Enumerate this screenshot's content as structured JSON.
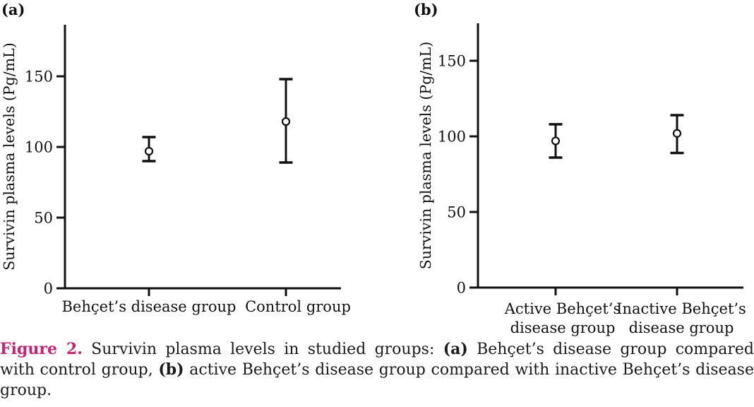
{
  "colors": {
    "background": "#ffffff",
    "ink": "#111111",
    "caption_text": "#1b1b1b",
    "figure_label_pink": "#c32370"
  },
  "chart_data": [
    {
      "type": "scatter",
      "subtype": "mean_with_error_bars",
      "panel_label": "(a)",
      "title": "",
      "xlabel": "",
      "ylabel": "Survivin plasma levels (Pg/mL)",
      "ylim": [
        0,
        185
      ],
      "yticks": [
        0,
        50,
        100,
        150
      ],
      "grid": false,
      "marker": "open-circle",
      "legend": "none",
      "categories": [
        "Behçet’s disease group",
        "Control group"
      ],
      "category_label_lines": [
        [
          "Behçet’s disease group"
        ],
        [
          "Control group"
        ]
      ],
      "series": [
        {
          "name": "mean with error bars",
          "values": [
            97,
            118
          ],
          "error_lower": [
            90,
            89
          ],
          "error_upper": [
            107,
            148
          ]
        }
      ]
    },
    {
      "type": "scatter",
      "subtype": "mean_with_error_bars",
      "panel_label": "(b)",
      "title": "",
      "xlabel": "",
      "ylabel": "Survivin plasma levels (Pg/mL)",
      "ylim": [
        0,
        175
      ],
      "yticks": [
        0,
        50,
        100,
        150
      ],
      "grid": false,
      "marker": "open-circle",
      "legend": "none",
      "categories": [
        "Active Behçet’s disease group",
        "Inactive Behçet’s disease group"
      ],
      "category_label_lines": [
        [
          "Active Behçet’s",
          "disease group"
        ],
        [
          "Inactive Behçet’s",
          "disease group"
        ]
      ],
      "series": [
        {
          "name": "mean with error bars",
          "values": [
            97,
            102
          ],
          "error_lower": [
            86,
            89
          ],
          "error_upper": [
            108,
            114
          ]
        }
      ]
    }
  ],
  "caption": {
    "line1": {
      "figure_label": "Figure 2.",
      "text_a": " Survivin plasma levels in studied groups: ",
      "bold_a": "(a)",
      "text_b": " Behçet’s disease group compared"
    },
    "line2": {
      "text_a": "with control group, ",
      "bold_a": "(b)",
      "text_b": " active Behçet’s disease group compared with inactive Behçet’s disease"
    },
    "line3": "group.",
    "full_text": "Figure 2. Survivin plasma levels in studied groups: (a) Behçet’s disease group compared with control group, (b) active Behçet’s disease group compared with inactive Behçet’s disease group."
  }
}
